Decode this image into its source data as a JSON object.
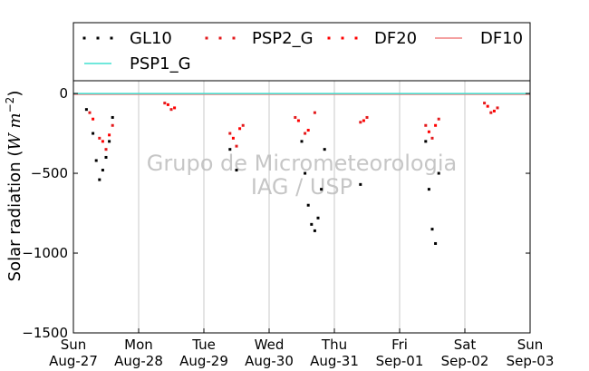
{
  "chart_data": {
    "type": "scatter",
    "ylabel": "Solar radiation (W m^-2)",
    "ylim": [
      -1500,
      80
    ],
    "yticks": [
      0,
      -500,
      -1000,
      -1500
    ],
    "ytick_labels": [
      "0",
      "−500",
      "−1000",
      "−1500"
    ],
    "xrange_days": [
      0,
      7
    ],
    "x_ticks": [
      {
        "day": 0,
        "weekday": "Sun",
        "date": "Aug-27"
      },
      {
        "day": 1,
        "weekday": "Mon",
        "date": "Aug-28"
      },
      {
        "day": 2,
        "weekday": "Tue",
        "date": "Aug-29"
      },
      {
        "day": 3,
        "weekday": "Wed",
        "date": "Aug-30"
      },
      {
        "day": 4,
        "weekday": "Thu",
        "date": "Aug-31"
      },
      {
        "day": 5,
        "weekday": "Fri",
        "date": "Sep-01"
      },
      {
        "day": 6,
        "weekday": "Sat",
        "date": "Sep-02"
      },
      {
        "day": 7,
        "weekday": "Sun",
        "date": "Sep-03"
      }
    ],
    "grid": "vertical",
    "legend_position": "top",
    "watermark": [
      "Grupo de Micrometeorologia",
      "IAG / USP"
    ],
    "series": [
      {
        "name": "GL10",
        "color": "#000000",
        "style": "dots",
        "points": [
          [
            0.2,
            -100
          ],
          [
            0.3,
            -250
          ],
          [
            0.35,
            -420
          ],
          [
            0.4,
            -540
          ],
          [
            0.45,
            -480
          ],
          [
            0.5,
            -400
          ],
          [
            0.55,
            -300
          ],
          [
            0.6,
            -150
          ],
          [
            3.5,
            -300
          ],
          [
            3.55,
            -500
          ],
          [
            3.6,
            -700
          ],
          [
            3.65,
            -820
          ],
          [
            3.7,
            -860
          ],
          [
            3.75,
            -780
          ],
          [
            3.8,
            -600
          ],
          [
            3.85,
            -350
          ],
          [
            5.4,
            -300
          ],
          [
            5.45,
            -600
          ],
          [
            5.5,
            -850
          ],
          [
            5.55,
            -940
          ],
          [
            5.6,
            -500
          ],
          [
            2.4,
            -350
          ],
          [
            2.5,
            -480
          ],
          [
            4.4,
            -570
          ]
        ]
      },
      {
        "name": "PSP2_G",
        "color": "#e31a1c",
        "style": "dots",
        "points": [
          [
            0.25,
            -120
          ],
          [
            0.4,
            -280
          ],
          [
            0.5,
            -350
          ],
          [
            0.6,
            -200
          ],
          [
            1.4,
            -60
          ],
          [
            1.5,
            -100
          ],
          [
            2.4,
            -250
          ],
          [
            2.5,
            -330
          ],
          [
            2.6,
            -200
          ],
          [
            3.4,
            -150
          ],
          [
            3.55,
            -250
          ],
          [
            3.7,
            -120
          ],
          [
            4.4,
            -180
          ],
          [
            4.5,
            -150
          ],
          [
            5.4,
            -200
          ],
          [
            5.5,
            -280
          ],
          [
            5.6,
            -160
          ],
          [
            6.3,
            -60
          ],
          [
            6.4,
            -120
          ],
          [
            6.5,
            -90
          ]
        ]
      },
      {
        "name": "DF20",
        "color": "#ff0000",
        "style": "dots",
        "points": [
          [
            0.3,
            -160
          ],
          [
            0.45,
            -300
          ],
          [
            0.55,
            -260
          ],
          [
            1.45,
            -70
          ],
          [
            1.55,
            -90
          ],
          [
            2.45,
            -280
          ],
          [
            2.55,
            -220
          ],
          [
            3.45,
            -170
          ],
          [
            3.6,
            -230
          ],
          [
            4.45,
            -170
          ],
          [
            5.45,
            -240
          ],
          [
            5.55,
            -200
          ],
          [
            6.35,
            -80
          ],
          [
            6.45,
            -110
          ]
        ]
      },
      {
        "name": "DF10",
        "color": "#f08080",
        "style": "line",
        "points": [
          [
            0,
            -5
          ],
          [
            7,
            -5
          ]
        ]
      },
      {
        "name": "PSP1_G",
        "color": "#40e0d0",
        "style": "line",
        "points": [
          [
            0,
            0
          ],
          [
            7,
            0
          ]
        ]
      }
    ]
  }
}
